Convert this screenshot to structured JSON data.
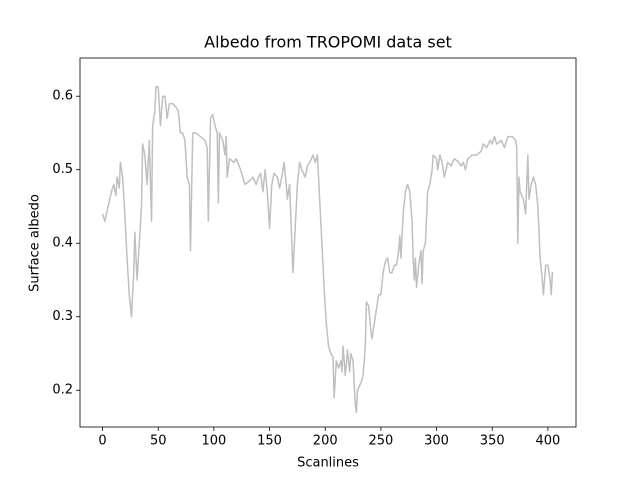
{
  "chart_data": {
    "type": "line",
    "title": "Albedo from TROPOMI data set",
    "x_label": "Scanlines",
    "y_label": "Surface albedo",
    "color": "#bfbfbf",
    "x": [
      0,
      2,
      5,
      8,
      10,
      12,
      13,
      15,
      16,
      18,
      20,
      22,
      24,
      26,
      28,
      29,
      31,
      33,
      35,
      36,
      38,
      40,
      42,
      44,
      45,
      47,
      48,
      50,
      52,
      54,
      56,
      58,
      60,
      63,
      66,
      68,
      70,
      72,
      74,
      76,
      78,
      79,
      81,
      84,
      88,
      92,
      94,
      95,
      97,
      99,
      101,
      103,
      104,
      105,
      108,
      110,
      111,
      112,
      114,
      118,
      120,
      124,
      128,
      132,
      135,
      138,
      140,
      142,
      144,
      146,
      148,
      150,
      152,
      154,
      157,
      159,
      161,
      163,
      165,
      166,
      168,
      170,
      171,
      173,
      175,
      177,
      179,
      182,
      184,
      186,
      189,
      191,
      193,
      195,
      197,
      199,
      201,
      203,
      205,
      207,
      208,
      210,
      212,
      214,
      215,
      216,
      218,
      220,
      222,
      223,
      225,
      227,
      228,
      229,
      232,
      234,
      236,
      237,
      239,
      241,
      242,
      244,
      246,
      248,
      250,
      252,
      254,
      256,
      258,
      260,
      262,
      264,
      266,
      267,
      268,
      270,
      272,
      274,
      276,
      278,
      279,
      280,
      281,
      282,
      284,
      286,
      287,
      288,
      290,
      292,
      294,
      296,
      297,
      300,
      301,
      303,
      305,
      307,
      310,
      313,
      316,
      320,
      322,
      324,
      326,
      328,
      332,
      336,
      340,
      342,
      345,
      348,
      350,
      352,
      354,
      358,
      361,
      364,
      368,
      371,
      372,
      373,
      374,
      375,
      378,
      380,
      382,
      383,
      385,
      387,
      389,
      391,
      393,
      395,
      396,
      398,
      400,
      402,
      403,
      404,
      405
    ],
    "values": [
      0.44,
      0.43,
      0.45,
      0.47,
      0.48,
      0.465,
      0.49,
      0.475,
      0.51,
      0.49,
      0.44,
      0.38,
      0.33,
      0.3,
      0.36,
      0.415,
      0.35,
      0.4,
      0.45,
      0.535,
      0.52,
      0.48,
      0.54,
      0.43,
      0.56,
      0.58,
      0.613,
      0.613,
      0.56,
      0.6,
      0.6,
      0.57,
      0.59,
      0.59,
      0.585,
      0.58,
      0.55,
      0.55,
      0.54,
      0.49,
      0.48,
      0.39,
      0.55,
      0.55,
      0.545,
      0.54,
      0.53,
      0.43,
      0.57,
      0.575,
      0.56,
      0.55,
      0.455,
      0.55,
      0.54,
      0.52,
      0.545,
      0.49,
      0.515,
      0.51,
      0.515,
      0.5,
      0.48,
      0.485,
      0.49,
      0.48,
      0.49,
      0.495,
      0.47,
      0.5,
      0.47,
      0.42,
      0.48,
      0.495,
      0.49,
      0.475,
      0.49,
      0.51,
      0.48,
      0.46,
      0.48,
      0.4,
      0.36,
      0.42,
      0.48,
      0.51,
      0.5,
      0.49,
      0.505,
      0.51,
      0.52,
      0.51,
      0.52,
      0.46,
      0.4,
      0.34,
      0.29,
      0.26,
      0.25,
      0.245,
      0.19,
      0.24,
      0.23,
      0.24,
      0.225,
      0.26,
      0.22,
      0.255,
      0.225,
      0.25,
      0.24,
      0.18,
      0.17,
      0.2,
      0.21,
      0.22,
      0.26,
      0.32,
      0.315,
      0.28,
      0.27,
      0.29,
      0.31,
      0.33,
      0.33,
      0.36,
      0.375,
      0.38,
      0.36,
      0.36,
      0.37,
      0.37,
      0.39,
      0.41,
      0.38,
      0.44,
      0.47,
      0.48,
      0.47,
      0.43,
      0.38,
      0.35,
      0.38,
      0.34,
      0.37,
      0.39,
      0.345,
      0.39,
      0.4,
      0.47,
      0.48,
      0.5,
      0.52,
      0.515,
      0.5,
      0.52,
      0.51,
      0.49,
      0.51,
      0.505,
      0.515,
      0.51,
      0.505,
      0.51,
      0.5,
      0.515,
      0.52,
      0.52,
      0.525,
      0.535,
      0.53,
      0.54,
      0.535,
      0.545,
      0.535,
      0.54,
      0.53,
      0.545,
      0.545,
      0.54,
      0.53,
      0.4,
      0.49,
      0.47,
      0.46,
      0.44,
      0.52,
      0.46,
      0.48,
      0.49,
      0.48,
      0.45,
      0.38,
      0.35,
      0.33,
      0.37,
      0.37,
      0.35,
      0.33,
      0.36,
      0.36
    ],
    "xlim": [
      -20.25,
      425.25
    ],
    "ylim": [
      0.15,
      0.652
    ],
    "xticks": [
      0,
      50,
      100,
      150,
      200,
      250,
      300,
      350,
      400
    ],
    "yticks": [
      0.2,
      0.3,
      0.4,
      0.5,
      0.6
    ]
  }
}
